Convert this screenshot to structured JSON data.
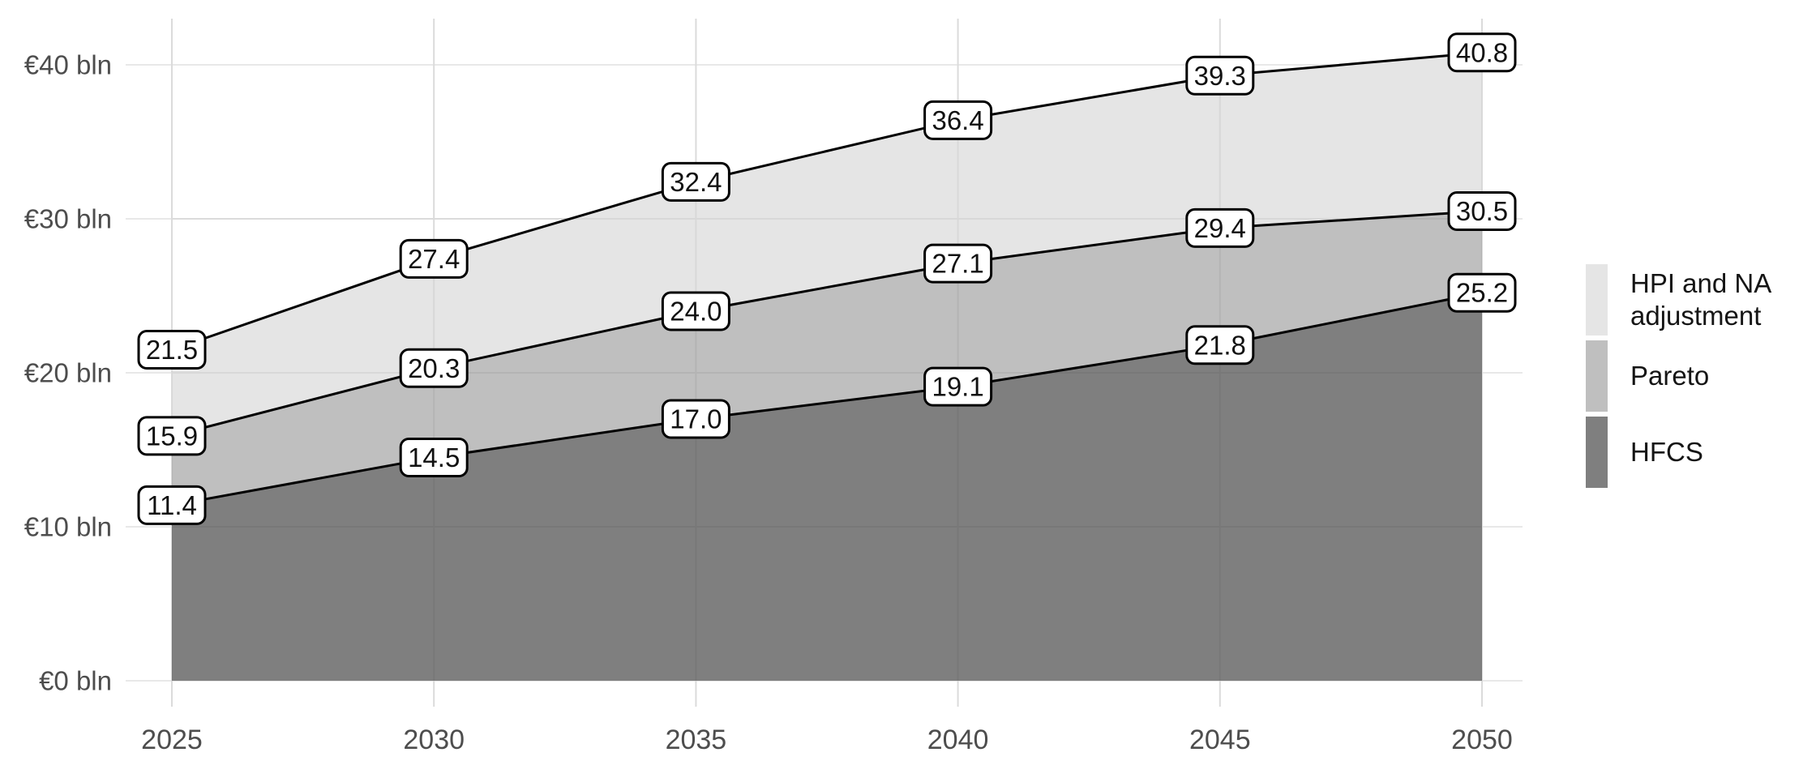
{
  "chart_data": {
    "type": "area",
    "title": "",
    "xlabel": "",
    "ylabel": "",
    "x": [
      2025,
      2030,
      2035,
      2040,
      2045,
      2050
    ],
    "x_tick_labels": [
      "2025",
      "2030",
      "2035",
      "2040",
      "2045",
      "2050"
    ],
    "y_ticks": [
      0,
      10,
      20,
      30,
      40
    ],
    "y_tick_labels": [
      "€0 bln",
      "€10 bln",
      "€20 bln",
      "€30 bln",
      "€40 bln"
    ],
    "ylim": [
      0,
      43
    ],
    "grid": true,
    "legend_position": "right",
    "series": [
      {
        "name": "HPI and NA adjustment",
        "color": "#e5e5e5",
        "values": [
          21.5,
          27.4,
          32.4,
          36.4,
          39.3,
          40.8
        ]
      },
      {
        "name": "Pareto",
        "color": "#bfbfbf",
        "values": [
          15.9,
          20.3,
          24.0,
          27.1,
          29.4,
          30.5
        ]
      },
      {
        "name": "HFCS",
        "color": "#7f7f7f",
        "values": [
          11.4,
          14.5,
          17.0,
          19.1,
          21.8,
          25.2
        ]
      }
    ],
    "line_color": "#000000",
    "gridline_color": "#e8e8e8",
    "axis_text_color": "#4d4d4d",
    "label_box": {
      "fill": "#ffffff",
      "border": "#000000"
    }
  }
}
